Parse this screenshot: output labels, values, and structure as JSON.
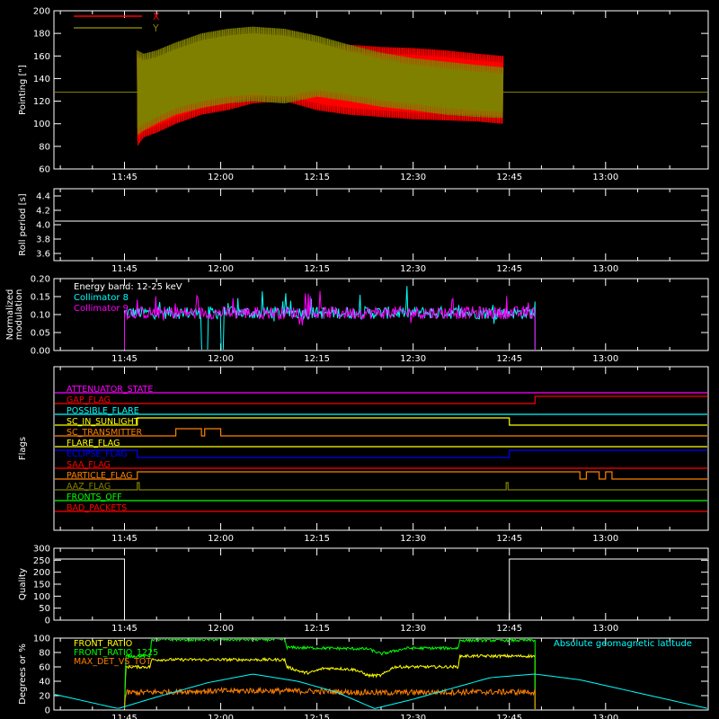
{
  "x_ticks": [
    "11:45",
    "12:00",
    "12:15",
    "12:30",
    "12:45",
    "13:00"
  ],
  "x_tick_values": [
    0,
    15,
    30,
    45,
    60,
    75
  ],
  "x_range": [
    -11,
    91
  ],
  "chart_data": [
    {
      "id": "pointing",
      "type": "line",
      "ylabel": "Pointing [\"]",
      "ylim": [
        60,
        200
      ],
      "yticks": [
        60,
        80,
        100,
        120,
        140,
        160,
        180,
        200
      ],
      "legend": [
        {
          "name": "X",
          "color": "#ff0000"
        },
        {
          "name": "Y",
          "color": "#808000"
        }
      ],
      "legend_position": "top-left",
      "series": [
        {
          "name": "X",
          "color": "#ff0000",
          "baseline": 128,
          "x": [
            2,
            3,
            5,
            8,
            12,
            16,
            20,
            25,
            30,
            35,
            40,
            45,
            50,
            55,
            59
          ],
          "upper": [
            162,
            158,
            155,
            158,
            162,
            165,
            170,
            168,
            166,
            170,
            168,
            167,
            165,
            162,
            160
          ],
          "lower": [
            80,
            88,
            92,
            100,
            108,
            112,
            118,
            120,
            112,
            108,
            106,
            104,
            103,
            102,
            100
          ]
        },
        {
          "name": "Y",
          "color": "#808000",
          "baseline": 128,
          "x": [
            2,
            3,
            5,
            8,
            12,
            16,
            20,
            25,
            30,
            35,
            40,
            45,
            50,
            55,
            59
          ],
          "upper": [
            165,
            162,
            165,
            172,
            180,
            184,
            186,
            184,
            178,
            170,
            163,
            158,
            155,
            152,
            150
          ],
          "lower": [
            90,
            94,
            100,
            108,
            114,
            118,
            120,
            118,
            124,
            120,
            115,
            112,
            108,
            106,
            105
          ]
        }
      ]
    },
    {
      "id": "roll",
      "type": "line",
      "ylabel": "Roll period [s]",
      "ylim": [
        3.5,
        4.5
      ],
      "yticks": [
        3.6,
        3.8,
        4.0,
        4.2,
        4.4
      ],
      "series": [
        {
          "name": "",
          "color": "#ffffff",
          "x": [
            -11,
            91
          ],
          "y": [
            4.05,
            4.05
          ]
        }
      ]
    },
    {
      "id": "modulation",
      "type": "line",
      "ylabel": "Normalized modulation",
      "ylim": [
        0,
        0.2
      ],
      "yticks": [
        0.0,
        0.05,
        0.1,
        0.15,
        0.2
      ],
      "annotation": "Energy band: 12-25 keV",
      "legend": [
        {
          "name": "Collimator 8",
          "color": "#00ffff"
        },
        {
          "name": "Collimator 9",
          "color": "#ff00ff"
        }
      ],
      "legend_position": "top-left",
      "active_range": [
        0,
        64
      ],
      "mean": 0.105,
      "dropouts": [
        [
          12,
          13
        ],
        [
          15,
          15.5
        ]
      ]
    },
    {
      "id": "flags",
      "type": "line",
      "ylabel": "Flags",
      "labels": [
        {
          "name": "ATTENUATOR_STATE",
          "color": "#ff00ff",
          "segments": [
            [
              -11,
              91,
              0
            ]
          ]
        },
        {
          "name": "GAP_FLAG",
          "color": "#ff0000",
          "segments": [
            [
              -11,
              64,
              0
            ],
            [
              64,
              91,
              1
            ]
          ]
        },
        {
          "name": "POSSIBLE_FLARE",
          "color": "#00ffff",
          "segments": [
            [
              -11,
              91,
              0
            ]
          ]
        },
        {
          "name": "SC_IN_SUNLIGHT",
          "color": "#ffff00",
          "segments": [
            [
              -11,
              2,
              0
            ],
            [
              2,
              60,
              1
            ],
            [
              60,
              91,
              0
            ]
          ]
        },
        {
          "name": "SC_TRANSMITTER",
          "color": "#ff8000",
          "segments": [
            [
              -11,
              8,
              0
            ],
            [
              8,
              12,
              1
            ],
            [
              12,
              12.5,
              0
            ],
            [
              12.5,
              15,
              1
            ],
            [
              15,
              91,
              0
            ]
          ]
        },
        {
          "name": "FLARE_FLAG",
          "color": "#ffff00",
          "segments": [
            [
              -11,
              91,
              0
            ]
          ]
        },
        {
          "name": "ECLIPSE_FLAG",
          "color": "#0000ff",
          "segments": [
            [
              -11,
              2,
              1
            ],
            [
              2,
              60,
              0
            ],
            [
              60,
              91,
              1
            ]
          ]
        },
        {
          "name": "SAA_FLAG",
          "color": "#ff0000",
          "segments": [
            [
              -11,
              91,
              0
            ]
          ]
        },
        {
          "name": "PARTICLE_FLAG",
          "color": "#ff8000",
          "segments": [
            [
              -11,
              2,
              0
            ],
            [
              2,
              71,
              1
            ],
            [
              71,
              72,
              0
            ],
            [
              72,
              74,
              1
            ],
            [
              74,
              75,
              0
            ],
            [
              75,
              76,
              1
            ],
            [
              76,
              91,
              0
            ]
          ]
        },
        {
          "name": "AAZ_FLAG",
          "color": "#808000",
          "segments": [
            [
              -11,
              2,
              0
            ],
            [
              2,
              2.3,
              1
            ],
            [
              2.3,
              59.5,
              0
            ],
            [
              59.5,
              59.8,
              1
            ],
            [
              59.8,
              91,
              0
            ]
          ]
        },
        {
          "name": "FRONTS_OFF",
          "color": "#00ff00",
          "segments": [
            [
              -11,
              91,
              0
            ]
          ]
        },
        {
          "name": "BAD_PACKETS",
          "color": "#ff0000",
          "segments": [
            [
              -11,
              91,
              0
            ]
          ]
        }
      ]
    },
    {
      "id": "quality",
      "type": "line",
      "ylabel": "Quality",
      "ylim": [
        0,
        300
      ],
      "yticks": [
        0,
        50,
        100,
        150,
        200,
        250,
        300
      ],
      "series": [
        {
          "name": "",
          "color": "#ffffff",
          "x": [
            -11,
            0,
            0,
            60,
            60,
            91
          ],
          "y": [
            255,
            255,
            0,
            0,
            255,
            255
          ]
        }
      ]
    },
    {
      "id": "ratios",
      "type": "line",
      "ylabel": "Degrees or %",
      "ylim": [
        0,
        100
      ],
      "yticks": [
        0,
        20,
        40,
        60,
        80,
        100
      ],
      "legend": [
        {
          "name": "FRONT_RATIO",
          "color": "#ffff00"
        },
        {
          "name": "FRONT_RATIO_1225",
          "color": "#00ff00"
        },
        {
          "name": "MAX_DET_VS_TOT",
          "color": "#ff8000"
        }
      ],
      "legend_position": "top-left",
      "right_label": {
        "name": "Absolute geomagnetic latitude",
        "color": "#00ffff"
      },
      "series": [
        {
          "name": "FRONT_RATIO",
          "color": "#ffff00",
          "x": [
            0,
            0.2,
            4,
            4.2,
            14,
            25,
            25.3,
            28,
            29,
            31,
            33,
            36,
            38,
            40,
            42,
            44,
            52,
            52.3,
            64
          ],
          "y": [
            0,
            60,
            60,
            70,
            70,
            70,
            60,
            52,
            52,
            58,
            58,
            56,
            48,
            48,
            60,
            60,
            60,
            75,
            75
          ]
        },
        {
          "name": "FRONT_RATIO_1225",
          "color": "#00ff00",
          "x": [
            0,
            0.2,
            4,
            4.2,
            14,
            25,
            25.3,
            38,
            40,
            44,
            52,
            52.3,
            64
          ],
          "y": [
            0,
            75,
            75,
            98,
            98,
            98,
            87,
            85,
            78,
            86,
            86,
            97,
            97
          ]
        },
        {
          "name": "MAX_DET_VS_TOT",
          "color": "#ff8000",
          "x": [
            0,
            0.2,
            10,
            20,
            30,
            40,
            50,
            64
          ],
          "y": [
            0,
            24,
            26,
            27,
            26,
            24,
            25,
            25
          ]
        },
        {
          "name": "Absolute geomagnetic latitude",
          "color": "#00ffff",
          "x": [
            -11,
            -6,
            -1,
            5,
            13,
            20,
            27,
            33,
            39,
            45,
            51,
            57,
            64,
            71,
            78,
            85,
            91
          ],
          "y": [
            22,
            12,
            2,
            18,
            38,
            50,
            40,
            25,
            2,
            15,
            30,
            45,
            50,
            42,
            28,
            14,
            2
          ]
        }
      ]
    }
  ]
}
